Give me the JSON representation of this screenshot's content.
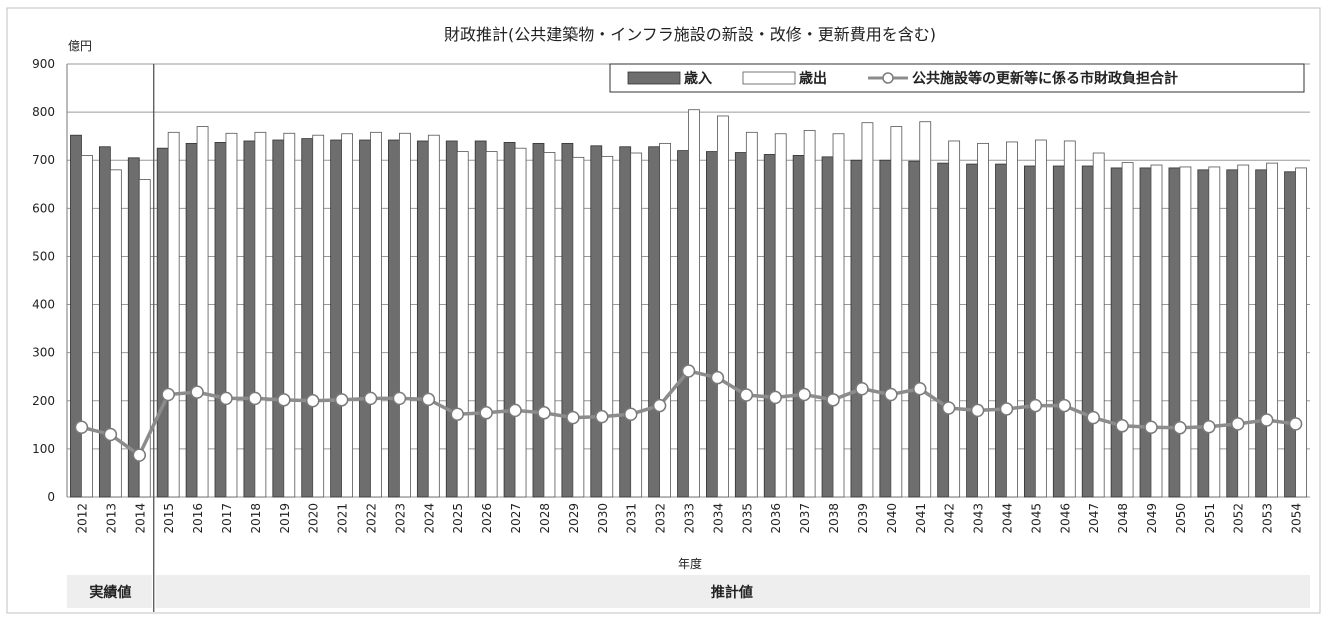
{
  "chart_data": {
    "type": "bar",
    "title": "財政推計(公共建築物・インフラ施設の新設・改修・更新費用を含む)",
    "ylabel": "億円",
    "xlabel": "年度",
    "ylim": [
      0,
      900
    ],
    "yticks": [
      0,
      100,
      200,
      300,
      400,
      500,
      600,
      700,
      800,
      900
    ],
    "grid": true,
    "legend": "top-right",
    "categories": [
      "2012",
      "2013",
      "2014",
      "2015",
      "2016",
      "2017",
      "2018",
      "2019",
      "2020",
      "2021",
      "2022",
      "2023",
      "2024",
      "2025",
      "2026",
      "2027",
      "2028",
      "2029",
      "2030",
      "2031",
      "2032",
      "2033",
      "2034",
      "2035",
      "2036",
      "2037",
      "2038",
      "2039",
      "2040",
      "2041",
      "2042",
      "2043",
      "2044",
      "2045",
      "2046",
      "2047",
      "2048",
      "2049",
      "2050",
      "2051",
      "2052",
      "2053",
      "2054"
    ],
    "series": [
      {
        "name": "歳入",
        "type": "bar",
        "color": "#6e6e6e",
        "values": [
          752,
          728,
          705,
          725,
          735,
          737,
          740,
          742,
          745,
          742,
          742,
          742,
          740,
          740,
          740,
          737,
          735,
          735,
          730,
          728,
          728,
          720,
          718,
          716,
          712,
          710,
          707,
          700,
          700,
          698,
          694,
          692,
          692,
          688,
          688,
          688,
          684,
          684,
          684,
          680,
          680,
          680,
          676
        ]
      },
      {
        "name": "歳出",
        "type": "bar",
        "color": "#ffffff",
        "values": [
          710,
          680,
          660,
          758,
          770,
          756,
          758,
          756,
          752,
          755,
          758,
          756,
          752,
          718,
          718,
          725,
          716,
          706,
          708,
          715,
          735,
          805,
          792,
          758,
          755,
          762,
          755,
          778,
          770,
          780,
          740,
          735,
          738,
          742,
          740,
          715,
          695,
          690,
          686,
          686,
          690,
          694,
          684
        ]
      },
      {
        "name": "公共施設等の更新等に係る市財政負担合計",
        "type": "line",
        "color": "#8c8c8c",
        "values": [
          145,
          130,
          87,
          213,
          218,
          205,
          205,
          202,
          200,
          202,
          205,
          205,
          203,
          172,
          175,
          180,
          175,
          165,
          167,
          172,
          190,
          262,
          248,
          212,
          207,
          213,
          202,
          225,
          213,
          225,
          185,
          180,
          183,
          190,
          190,
          165,
          148,
          145,
          144,
          146,
          152,
          160,
          152
        ]
      }
    ],
    "periods": [
      {
        "label": "実績値",
        "categories": [
          "2012",
          "2013",
          "2014"
        ]
      },
      {
        "label": "推計値",
        "categories": [
          "2015",
          "2054"
        ]
      }
    ]
  }
}
